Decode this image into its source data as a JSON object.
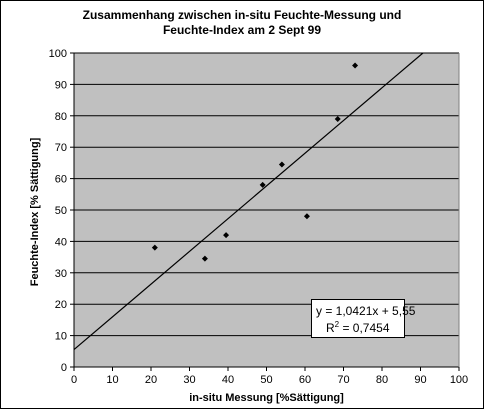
{
  "chart_data": {
    "type": "scatter",
    "title": [
      "Zusammenhang zwischen in-situ Feuchte-Messung und",
      "Feuchte-Index am 2 Sept 99"
    ],
    "xlabel": "in-situ Messung [%Sättigung]",
    "ylabel": "Feuchte-Index [% Sättigung]",
    "xlim": [
      0,
      100
    ],
    "ylim": [
      0,
      100
    ],
    "x_ticks": [
      0,
      10,
      20,
      30,
      40,
      50,
      60,
      70,
      80,
      90,
      100
    ],
    "y_ticks": [
      0,
      10,
      20,
      30,
      40,
      50,
      60,
      70,
      80,
      90,
      100
    ],
    "grid": "horizontal",
    "plot_background": "#c0c0c0",
    "marker_color": "#000000",
    "points": [
      {
        "x": 21,
        "y": 38
      },
      {
        "x": 34,
        "y": 34.5
      },
      {
        "x": 39.5,
        "y": 42
      },
      {
        "x": 49,
        "y": 58
      },
      {
        "x": 54,
        "y": 64.5
      },
      {
        "x": 60.5,
        "y": 48
      },
      {
        "x": 68.5,
        "y": 79
      },
      {
        "x": 73,
        "y": 96
      }
    ],
    "trendline": {
      "type": "linear",
      "slope": 1.0421,
      "intercept": 5.55
    },
    "equation_label": "y = 1,0421x + 5,55",
    "r2_label_prefix": "R",
    "r2_label_exponent": "2",
    "r2_label_value": " = 0,7454"
  }
}
